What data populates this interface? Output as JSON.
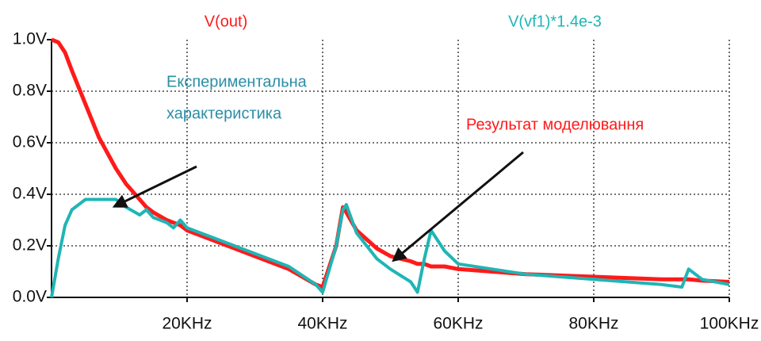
{
  "chart_data": {
    "type": "line",
    "x": [
      0,
      1,
      2,
      3,
      5,
      7,
      9.5,
      11,
      13,
      14,
      15,
      17,
      18,
      19,
      20,
      25,
      30,
      35,
      39,
      40,
      42,
      43,
      43.5,
      45,
      48,
      50,
      53,
      54,
      55,
      56,
      58,
      60,
      65,
      70,
      80,
      90,
      93,
      94,
      96,
      100
    ],
    "series": [
      {
        "name": "V(out)",
        "color": "#ff1a1a",
        "values": [
          1.0,
          0.99,
          0.95,
          0.88,
          0.75,
          0.62,
          0.5,
          0.44,
          0.38,
          0.35,
          0.33,
          0.3,
          0.29,
          0.28,
          0.26,
          0.21,
          0.16,
          0.11,
          0.05,
          0.04,
          0.2,
          0.35,
          0.33,
          0.26,
          0.19,
          0.16,
          0.14,
          0.13,
          0.13,
          0.12,
          0.12,
          0.11,
          0.1,
          0.09,
          0.08,
          0.07,
          0.07,
          0.07,
          0.065,
          0.06
        ]
      },
      {
        "name": "V(vf1)*1.4e-3",
        "color": "#1fb5b5",
        "values": [
          0.0,
          0.15,
          0.28,
          0.34,
          0.38,
          0.38,
          0.38,
          0.35,
          0.32,
          0.34,
          0.31,
          0.29,
          0.27,
          0.3,
          0.27,
          0.22,
          0.17,
          0.12,
          0.05,
          0.02,
          0.2,
          0.34,
          0.36,
          0.25,
          0.15,
          0.11,
          0.06,
          0.02,
          0.15,
          0.26,
          0.18,
          0.13,
          0.11,
          0.09,
          0.07,
          0.05,
          0.04,
          0.11,
          0.07,
          0.05
        ]
      }
    ],
    "xlim": [
      0,
      100
    ],
    "xticks": [
      {
        "value": 20,
        "label": "20KHz"
      },
      {
        "value": 40,
        "label": "40KHz"
      },
      {
        "value": 60,
        "label": "60KHz"
      },
      {
        "value": 80,
        "label": "80KHz"
      },
      {
        "value": 100,
        "label": "100KHz"
      }
    ],
    "ylim": [
      0,
      1.0
    ],
    "yticks": [
      {
        "value": 0,
        "label": "0.0V"
      },
      {
        "value": 0.2,
        "label": "0.2V"
      },
      {
        "value": 0.4,
        "label": "0.4V"
      },
      {
        "value": 0.6,
        "label": "0.6V"
      },
      {
        "value": 0.8,
        "label": "0.8V"
      },
      {
        "value": 1.0,
        "label": "1.0V"
      }
    ],
    "grid": true,
    "annotations": [
      "Експериментальна",
      "характеристика",
      "Результат моделювання"
    ]
  }
}
